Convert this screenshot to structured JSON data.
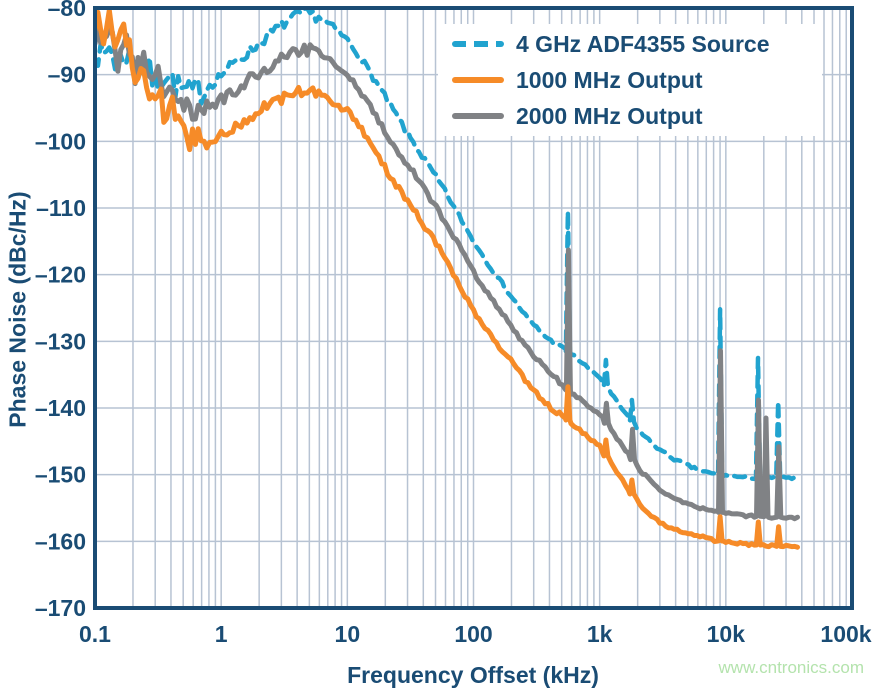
{
  "watermark": "www.cntronics.com",
  "colors": {
    "navy": "#1a4c74",
    "grid": "#b7c3d3",
    "border": "#1a4c74",
    "watermark_green": "#b4e3ad",
    "cyan": "#21a3cf",
    "orange": "#f68b28",
    "gray": "#808285",
    "background": "#ffffff"
  },
  "chart_data": {
    "type": "line",
    "title": "",
    "xlabel": "Frequency Offset (kHz)",
    "ylabel": "Phase Noise (dBc/Hz)",
    "xscale": "log",
    "xlim": [
      0.1,
      100000
    ],
    "ylim": [
      -170,
      -80
    ],
    "grid": "on",
    "legend_position": "top-right",
    "x_ticks": [
      {
        "v": 0.1,
        "label": "0.1"
      },
      {
        "v": 1,
        "label": "1"
      },
      {
        "v": 10,
        "label": "10"
      },
      {
        "v": 100,
        "label": "100"
      },
      {
        "v": 1000,
        "label": "1k"
      },
      {
        "v": 10000,
        "label": "10k"
      },
      {
        "v": 100000,
        "label": "100k"
      }
    ],
    "y_ticks": [
      {
        "v": -80,
        "label": "–80"
      },
      {
        "v": -90,
        "label": "–90"
      },
      {
        "v": -100,
        "label": "–100"
      },
      {
        "v": -110,
        "label": "–110"
      },
      {
        "v": -120,
        "label": "–120"
      },
      {
        "v": -130,
        "label": "–130"
      },
      {
        "v": -140,
        "label": "–140"
      },
      {
        "v": -150,
        "label": "–150"
      },
      {
        "v": -160,
        "label": "–160"
      },
      {
        "v": -170,
        "label": "–170"
      }
    ],
    "noise_segments": [
      [
        0.1,
        0.8,
        2.2
      ],
      [
        0.8,
        6,
        0.85
      ],
      [
        6,
        60,
        0.5
      ],
      [
        60,
        600,
        0.3
      ],
      [
        600,
        40000,
        0.22
      ]
    ],
    "series": [
      {
        "name": "4 GHz ADF4355 Source",
        "color": "#21a3cf",
        "style": "dashed",
        "anchors": [
          [
            0.1,
            -86
          ],
          [
            0.115,
            -88
          ],
          [
            0.13,
            -85.5
          ],
          [
            0.15,
            -89
          ],
          [
            0.18,
            -86.5
          ],
          [
            0.21,
            -90
          ],
          [
            0.25,
            -88
          ],
          [
            0.3,
            -91.5
          ],
          [
            0.36,
            -89.5
          ],
          [
            0.45,
            -92
          ],
          [
            0.55,
            -92.7
          ],
          [
            0.7,
            -92.3
          ],
          [
            0.9,
            -90.8
          ],
          [
            1.1,
            -89.3
          ],
          [
            1.4,
            -87.7
          ],
          [
            1.8,
            -86
          ],
          [
            2.4,
            -84
          ],
          [
            3.2,
            -82.2
          ],
          [
            4.2,
            -81
          ],
          [
            5,
            -80.8
          ],
          [
            6,
            -81.4
          ],
          [
            7.5,
            -82.7
          ],
          [
            9,
            -84
          ],
          [
            10,
            -84.8
          ],
          [
            13,
            -87.7
          ],
          [
            17,
            -91.2
          ],
          [
            22,
            -94.7
          ],
          [
            30,
            -98.8
          ],
          [
            40,
            -102.5
          ],
          [
            55,
            -106.5
          ],
          [
            75,
            -110.8
          ],
          [
            100,
            -115
          ],
          [
            140,
            -119.2
          ],
          [
            200,
            -123.3
          ],
          [
            280,
            -127
          ],
          [
            400,
            -129.8
          ],
          [
            560,
            -131.5
          ],
          [
            800,
            -133.9
          ],
          [
            1000,
            -135.4
          ],
          [
            1300,
            -138.5
          ],
          [
            1700,
            -141.5
          ],
          [
            2200,
            -144
          ],
          [
            3000,
            -146.3
          ],
          [
            4000,
            -147.8
          ],
          [
            5500,
            -149
          ],
          [
            7500,
            -149.8
          ],
          [
            10000,
            -150.2
          ],
          [
            14000,
            -150.4
          ],
          [
            20000,
            -150.5
          ],
          [
            28000,
            -150.5
          ],
          [
            38000,
            -150.6
          ]
        ],
        "spurs": [
          [
            560,
            -110.5
          ],
          [
            1120,
            -132.8
          ],
          [
            1800,
            -138.8
          ],
          [
            9000,
            -125.2
          ],
          [
            18000,
            -132.5
          ],
          [
            26000,
            -139
          ]
        ]
      },
      {
        "name": "1000 MHz Output",
        "color": "#f68b28",
        "style": "solid",
        "anchors": [
          [
            0.1,
            -81.5
          ],
          [
            0.115,
            -84
          ],
          [
            0.13,
            -80.8
          ],
          [
            0.15,
            -86
          ],
          [
            0.17,
            -83
          ],
          [
            0.2,
            -88
          ],
          [
            0.22,
            -92
          ],
          [
            0.25,
            -89
          ],
          [
            0.28,
            -95
          ],
          [
            0.32,
            -92
          ],
          [
            0.36,
            -97
          ],
          [
            0.42,
            -95
          ],
          [
            0.5,
            -98.5
          ],
          [
            0.6,
            -99.5
          ],
          [
            0.7,
            -100.3
          ],
          [
            0.85,
            -100
          ],
          [
            1,
            -99.3
          ],
          [
            1.3,
            -97.8
          ],
          [
            1.7,
            -96.2
          ],
          [
            2.2,
            -95
          ],
          [
            3,
            -93.6
          ],
          [
            4,
            -92.5
          ],
          [
            4.8,
            -92.1
          ],
          [
            5.5,
            -92.4
          ],
          [
            7,
            -93.6
          ],
          [
            8.5,
            -94.6
          ],
          [
            10,
            -95.3
          ],
          [
            13,
            -98.3
          ],
          [
            17,
            -102
          ],
          [
            22,
            -105.2
          ],
          [
            30,
            -109
          ],
          [
            40,
            -112.5
          ],
          [
            55,
            -116.5
          ],
          [
            75,
            -121
          ],
          [
            100,
            -125.5
          ],
          [
            140,
            -129.5
          ],
          [
            200,
            -133
          ],
          [
            280,
            -136.8
          ],
          [
            400,
            -139.8
          ],
          [
            560,
            -141.8
          ],
          [
            800,
            -144.3
          ],
          [
            1000,
            -145.8
          ],
          [
            1300,
            -149
          ],
          [
            1700,
            -152.3
          ],
          [
            2200,
            -155
          ],
          [
            3000,
            -157.2
          ],
          [
            4000,
            -158.3
          ],
          [
            5500,
            -159
          ],
          [
            7500,
            -159.7
          ],
          [
            10000,
            -160.1
          ],
          [
            14000,
            -160.4
          ],
          [
            20000,
            -160.6
          ],
          [
            28000,
            -160.8
          ],
          [
            38000,
            -160.9
          ]
        ],
        "spurs": [
          [
            560,
            -136.8
          ],
          [
            1120,
            -144.8
          ],
          [
            1800,
            -150.8
          ],
          [
            9000,
            -156.3
          ],
          [
            18100,
            -157.1
          ],
          [
            26200,
            -157.8
          ]
        ]
      },
      {
        "name": "2000 MHz Output",
        "color": "#808285",
        "style": "solid",
        "anchors": [
          [
            0.1,
            -84
          ],
          [
            0.115,
            -86.5
          ],
          [
            0.13,
            -83.5
          ],
          [
            0.15,
            -88
          ],
          [
            0.18,
            -85
          ],
          [
            0.21,
            -89.5
          ],
          [
            0.24,
            -87
          ],
          [
            0.27,
            -92
          ],
          [
            0.31,
            -89.5
          ],
          [
            0.36,
            -93.5
          ],
          [
            0.42,
            -91.5
          ],
          [
            0.5,
            -94
          ],
          [
            0.6,
            -94.8
          ],
          [
            0.75,
            -95
          ],
          [
            0.9,
            -94.3
          ],
          [
            1.1,
            -93.2
          ],
          [
            1.4,
            -91.8
          ],
          [
            1.8,
            -90.3
          ],
          [
            2.4,
            -88.8
          ],
          [
            3.2,
            -87.4
          ],
          [
            4.2,
            -86.5
          ],
          [
            5,
            -86.3
          ],
          [
            6,
            -86.9
          ],
          [
            7.5,
            -88
          ],
          [
            9,
            -89.2
          ],
          [
            10,
            -90
          ],
          [
            13,
            -92.9
          ],
          [
            17,
            -96.4
          ],
          [
            22,
            -99.7
          ],
          [
            30,
            -103.5
          ],
          [
            40,
            -107
          ],
          [
            55,
            -111
          ],
          [
            75,
            -115.3
          ],
          [
            100,
            -119.6
          ],
          [
            140,
            -123.7
          ],
          [
            200,
            -127.8
          ],
          [
            280,
            -131.5
          ],
          [
            400,
            -134.6
          ],
          [
            560,
            -137.3
          ],
          [
            800,
            -139.6
          ],
          [
            1000,
            -140.9
          ],
          [
            1300,
            -143.9
          ],
          [
            1700,
            -147
          ],
          [
            2200,
            -149.8
          ],
          [
            3000,
            -152.2
          ],
          [
            4000,
            -153.6
          ],
          [
            5500,
            -154.7
          ],
          [
            7500,
            -155.4
          ],
          [
            10000,
            -155.8
          ],
          [
            14000,
            -156.1
          ],
          [
            20000,
            -156.3
          ],
          [
            28000,
            -156.4
          ],
          [
            38000,
            -156.5
          ]
        ],
        "spurs": [
          [
            565,
            -116.3
          ],
          [
            1130,
            -139.3
          ],
          [
            1820,
            -143.2
          ],
          [
            9080,
            -131.4
          ],
          [
            18150,
            -138.8
          ],
          [
            20800,
            -141.5
          ],
          [
            26300,
            -145.8
          ]
        ]
      }
    ]
  },
  "legend": {
    "items": [
      {
        "label": "4 GHz ADF4355 Source"
      },
      {
        "label": "1000 MHz Output"
      },
      {
        "label": "2000 MHz Output"
      }
    ]
  }
}
